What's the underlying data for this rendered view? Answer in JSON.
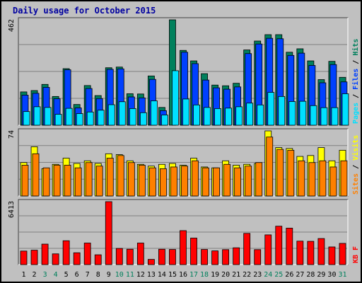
{
  "title": "Daily usage for October 2015",
  "colors": {
    "background": "#c0c0c0",
    "hits": "#00805c",
    "files": "#0040ff",
    "pages": "#00e0ff",
    "visits": "#ffff00",
    "sites": "#ff8000",
    "kbytes": "#ff0000",
    "weekend_label": "#00805c",
    "weekday_label": "#000000"
  },
  "chart_data": {
    "type": "bar",
    "categories": [
      "1",
      "2",
      "3",
      "4",
      "5",
      "6",
      "7",
      "8",
      "9",
      "10",
      "11",
      "12",
      "13",
      "14",
      "15",
      "16",
      "17",
      "18",
      "19",
      "20",
      "21",
      "22",
      "23",
      "24",
      "25",
      "26",
      "27",
      "28",
      "29",
      "30",
      "31"
    ],
    "weekend": [
      "3",
      "4",
      "10",
      "11",
      "17",
      "18",
      "24",
      "25",
      "31"
    ],
    "panels": [
      {
        "name": "hits-files-pages",
        "ymax_label": "462",
        "ymax": 462,
        "legend": [
          {
            "text": "Pages",
            "color": "#00e0ff"
          },
          {
            "text": " / ",
            "color": "#000000"
          },
          {
            "text": "Files",
            "color": "#0040ff"
          },
          {
            "text": " / ",
            "color": "#000000"
          },
          {
            "text": "Hits",
            "color": "#00805c"
          }
        ],
        "series": [
          {
            "name": "Hits",
            "color": "#00805c",
            "values": [
              146,
              152,
              179,
              126,
              248,
              91,
              174,
              130,
              252,
              255,
              138,
              137,
              216,
              78,
              462,
              328,
              282,
              226,
              176,
              173,
              184,
              330,
              369,
              397,
              397,
              320,
              335,
              282,
              200,
              280,
              210
            ]
          },
          {
            "name": "Files",
            "color": "#0040ff",
            "values": [
              132,
              140,
              166,
              116,
              243,
              76,
              161,
              117,
              245,
              247,
              124,
              120,
              201,
              64,
              0,
              320,
              270,
              198,
              164,
              158,
              168,
              314,
              356,
              381,
              379,
              306,
              316,
              262,
              186,
              266,
              190
            ]
          },
          {
            "name": "Pages",
            "color": "#00e0ff",
            "values": [
              60,
              81,
              78,
              48,
              74,
              51,
              58,
              66,
              90,
              103,
              73,
              55,
              107,
              45,
              239,
              115,
              89,
              78,
              73,
              75,
              81,
              97,
              89,
              144,
              126,
              104,
              105,
              86,
              77,
              77,
              138
            ]
          }
        ]
      },
      {
        "name": "visits-sites",
        "ymax_label": "74",
        "ymax": 74,
        "legend": [
          {
            "text": "Sites",
            "color": "#ff8000"
          },
          {
            "text": " / ",
            "color": "#000000"
          },
          {
            "text": "Visits",
            "color": "#ffff00"
          }
        ],
        "series": [
          {
            "name": "Visits",
            "color": "#ffff00",
            "values": [
              38,
              56,
              31,
              36,
              43,
              37,
              40,
              37,
              48,
              47,
              40,
              36,
              34,
              36,
              37,
              35,
              43,
              33,
              32,
              40,
              35,
              36,
              37,
              74,
              55,
              54,
              45,
              46,
              55,
              40,
              52
            ]
          },
          {
            "name": "Sites",
            "color": "#ff8000",
            "values": [
              35,
              48,
              32,
              35,
              35,
              32,
              38,
              34,
              43,
              46,
              38,
              35,
              32,
              31,
              33,
              34,
              40,
              32,
              32,
              36,
              32,
              34,
              38,
              67,
              53,
              52,
              40,
              38,
              40,
              33,
              40
            ]
          }
        ]
      },
      {
        "name": "kbytes",
        "ymax_label": "6413",
        "ymax": 6413,
        "legend": [
          {
            "text": "KB F",
            "color": "#ff0000"
          }
        ],
        "series": [
          {
            "name": "KB F",
            "color": "#ff0000",
            "values": [
              1380,
              1471,
              2088,
              1096,
              2432,
              1207,
              2199,
              1002,
              6413,
              1648,
              1569,
              2199,
              532,
              1566,
              1542,
              3462,
              2705,
              1542,
              1400,
              1527,
              1715,
              3183,
              1527,
              3031,
              3915,
              3717,
              2391,
              2373,
              2659,
              1801,
              2163
            ]
          }
        ]
      }
    ]
  }
}
